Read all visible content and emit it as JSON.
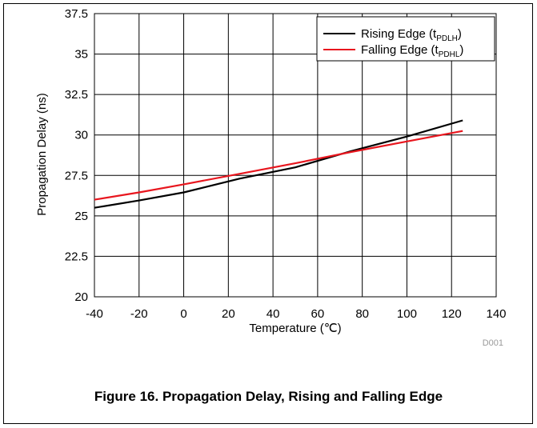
{
  "caption": "Figure 16. Propagation Delay, Rising and Falling Edge",
  "figure_code": "D001",
  "chart_data": {
    "type": "line",
    "xlabel": "Temperature (℃)",
    "ylabel": "Propagation Delay (ns)",
    "xlim": [
      -40,
      140
    ],
    "ylim": [
      20,
      37.5
    ],
    "xticks": [
      -40,
      -20,
      0,
      20,
      40,
      60,
      80,
      100,
      120,
      140
    ],
    "xtick_labels": [
      "-40",
      "-20",
      "0",
      "20",
      "40",
      "60",
      "80",
      "100",
      "120",
      "140"
    ],
    "yticks": [
      20,
      22.5,
      25,
      27.5,
      30,
      32.5,
      35,
      37.5
    ],
    "ytick_labels": [
      "20",
      "22.5",
      "25",
      "27.5",
      "30",
      "32.5",
      "35",
      "37.5"
    ],
    "grid": true,
    "legend_position": "top-right",
    "series": [
      {
        "name": "Rising Edge (tPDLH)",
        "name_main": "Rising Edge (t",
        "name_sub": "PDLH",
        "name_close": ")",
        "color": "#000000",
        "x": [
          -40,
          -20,
          0,
          25,
          50,
          75,
          100,
          125
        ],
        "y": [
          25.5,
          25.95,
          26.45,
          27.3,
          28.0,
          29.0,
          29.9,
          30.9
        ]
      },
      {
        "name": "Falling Edge (tPDHL)",
        "name_main": "Falling Edge (t",
        "name_sub": "PDHL",
        "name_close": ")",
        "color": "#e8161e",
        "x": [
          -40,
          -20,
          0,
          25,
          50,
          75,
          100,
          125
        ],
        "y": [
          26.0,
          26.45,
          26.95,
          27.6,
          28.25,
          28.95,
          29.6,
          30.25
        ]
      }
    ]
  }
}
